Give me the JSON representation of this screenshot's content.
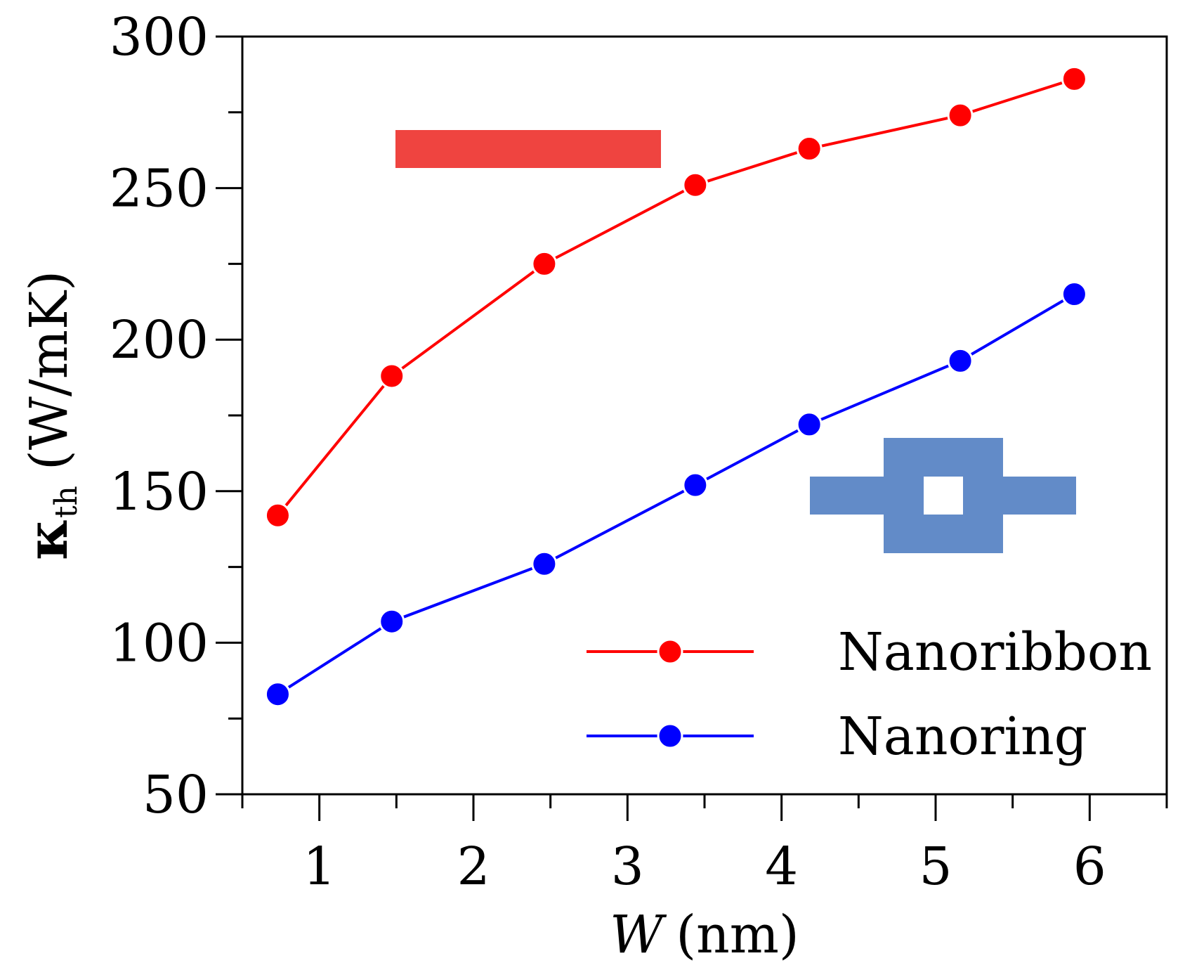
{
  "chart_data": {
    "type": "line",
    "title": "",
    "xlabel": {
      "var": "W",
      "unit": "(nm)"
    },
    "ylabel": {
      "symbol": "κ",
      "sub": "th",
      "unit": "(W/mK)"
    },
    "xlim": [
      0.5,
      6.5
    ],
    "ylim": [
      50,
      300
    ],
    "x_major_ticks": [
      1,
      2,
      3,
      4,
      5,
      6
    ],
    "x_minor_ticks": [
      0.5,
      1.5,
      2.5,
      3.5,
      4.5,
      5.5,
      6.5
    ],
    "y_major_ticks": [
      50,
      100,
      150,
      200,
      250,
      300
    ],
    "y_minor_ticks": [
      75,
      125,
      175,
      225,
      275
    ],
    "tick_labels_x": [
      "1",
      "2",
      "3",
      "4",
      "5",
      "6"
    ],
    "tick_labels_y": [
      "50",
      "100",
      "150",
      "200",
      "250",
      "300"
    ],
    "legend_position": "bottom-right",
    "series": [
      {
        "name": "Nanoribbon",
        "color": "#ff0000",
        "x": [
          0.73,
          1.47,
          2.46,
          3.44,
          4.18,
          5.16,
          5.9
        ],
        "values": [
          142,
          188,
          225,
          251,
          263,
          274,
          286
        ]
      },
      {
        "name": "Nanoring",
        "color": "#0000ff",
        "x": [
          0.73,
          1.47,
          2.46,
          3.44,
          4.18,
          5.16,
          5.9
        ],
        "values": [
          83,
          107,
          126,
          152,
          172,
          193,
          215
        ]
      }
    ],
    "insets": [
      {
        "name": "nanoribbon-shape",
        "color": "#ef4440"
      },
      {
        "name": "nanoring-shape",
        "color": "#628bc8"
      }
    ]
  }
}
